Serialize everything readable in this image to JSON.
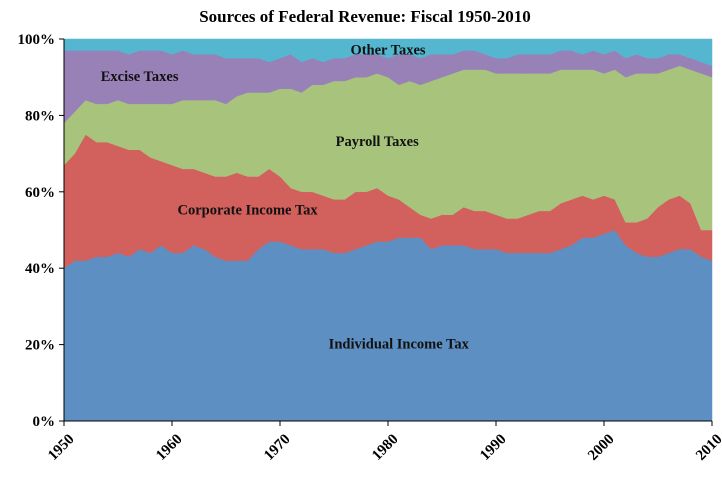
{
  "chart_data": {
    "type": "area",
    "stacked": true,
    "normalized": true,
    "title": "Sources of Federal Revenue:  Fiscal 1950-2010",
    "xlabel": "",
    "ylabel": "",
    "xlim": [
      1950,
      2010
    ],
    "ylim": [
      0,
      100
    ],
    "x_ticks": [
      1950,
      1960,
      1970,
      1980,
      1990,
      2000,
      2010
    ],
    "y_ticks": [
      0,
      20,
      40,
      60,
      80,
      100
    ],
    "y_tick_labels": [
      "0%",
      "20%",
      "40%",
      "60%",
      "80%",
      "100%"
    ],
    "grid": false,
    "legend": "none",
    "x": [
      1950,
      1951,
      1952,
      1953,
      1954,
      1955,
      1956,
      1957,
      1958,
      1959,
      1960,
      1961,
      1962,
      1963,
      1964,
      1965,
      1966,
      1967,
      1968,
      1969,
      1970,
      1971,
      1972,
      1973,
      1974,
      1975,
      1976,
      1977,
      1978,
      1979,
      1980,
      1981,
      1982,
      1983,
      1984,
      1985,
      1986,
      1987,
      1988,
      1989,
      1990,
      1991,
      1992,
      1993,
      1994,
      1995,
      1996,
      1997,
      1998,
      1999,
      2000,
      2001,
      2002,
      2003,
      2004,
      2005,
      2006,
      2007,
      2008,
      2009,
      2010
    ],
    "series": [
      {
        "name": "Individual Income Tax",
        "color": "#5d8fc3",
        "values": [
          40,
          42,
          42,
          43,
          43,
          44,
          43,
          45,
          44,
          46,
          44,
          44,
          46,
          45,
          43,
          42,
          42,
          42,
          45,
          47,
          47,
          46,
          45,
          45,
          45,
          44,
          44,
          45,
          46,
          47,
          47,
          48,
          48,
          48,
          45,
          46,
          46,
          46,
          45,
          45,
          45,
          44,
          44,
          44,
          44,
          44,
          45,
          46,
          48,
          48,
          49,
          50,
          46,
          44,
          43,
          43,
          44,
          45,
          45,
          43,
          42
        ]
      },
      {
        "name": "Corporate Income Tax",
        "color": "#d2605d",
        "values": [
          27,
          28,
          33,
          30,
          30,
          28,
          28,
          26,
          25,
          22,
          23,
          22,
          20,
          20,
          21,
          22,
          23,
          22,
          19,
          19,
          17,
          15,
          15,
          15,
          14,
          14,
          14,
          15,
          14,
          14,
          12,
          10,
          8,
          6,
          8,
          8,
          8,
          10,
          10,
          10,
          9,
          9,
          9,
          10,
          11,
          11,
          12,
          12,
          11,
          10,
          10,
          8,
          6,
          8,
          10,
          13,
          14,
          14,
          12,
          7,
          8
        ]
      },
      {
        "name": "Payroll Taxes",
        "color": "#a8c47c",
        "values": [
          11,
          11,
          9,
          10,
          10,
          12,
          12,
          12,
          14,
          15,
          16,
          18,
          18,
          19,
          20,
          19,
          20,
          22,
          22,
          20,
          23,
          26,
          26,
          28,
          29,
          31,
          31,
          30,
          30,
          30,
          31,
          30,
          33,
          34,
          36,
          36,
          37,
          36,
          37,
          37,
          37,
          38,
          38,
          37,
          36,
          36,
          35,
          34,
          33,
          34,
          32,
          34,
          38,
          39,
          38,
          35,
          34,
          34,
          35,
          41,
          40
        ]
      },
      {
        "name": "Excise Taxes",
        "color": "#9881b7",
        "values": [
          19,
          16,
          13,
          14,
          14,
          13,
          13,
          14,
          14,
          14,
          13,
          13,
          12,
          12,
          12,
          12,
          10,
          9,
          9,
          8,
          8,
          9,
          8,
          7,
          6,
          6,
          6,
          6,
          6,
          5,
          5,
          8,
          7,
          7,
          7,
          6,
          5,
          5,
          5,
          4,
          4,
          4,
          5,
          5,
          5,
          5,
          5,
          5,
          4,
          5,
          5,
          5,
          5,
          5,
          4,
          4,
          4,
          3,
          3,
          3,
          3
        ]
      },
      {
        "name": "Other Taxes",
        "color": "#55b6cf",
        "values": [
          3,
          3,
          3,
          3,
          3,
          3,
          4,
          3,
          3,
          3,
          4,
          3,
          4,
          4,
          4,
          5,
          5,
          5,
          5,
          6,
          5,
          4,
          6,
          5,
          6,
          5,
          5,
          4,
          4,
          4,
          5,
          4,
          4,
          5,
          4,
          4,
          4,
          3,
          3,
          4,
          5,
          5,
          4,
          4,
          4,
          4,
          3,
          3,
          4,
          3,
          4,
          3,
          5,
          4,
          5,
          5,
          4,
          4,
          5,
          6,
          7
        ]
      }
    ],
    "annotations": [
      {
        "text": "Individual Income Tax",
        "series": 0,
        "x": 1981,
        "y": 19
      },
      {
        "text": "Corporate Income Tax",
        "series": 1,
        "x": 1967,
        "y": 54
      },
      {
        "text": "Payroll Taxes",
        "series": 2,
        "x": 1979,
        "y": 72
      },
      {
        "text": "Excise Taxes",
        "series": 3,
        "x": 1957,
        "y": 89
      },
      {
        "text": "Other Taxes",
        "series": 4,
        "x": 1980,
        "y": 96
      }
    ]
  }
}
